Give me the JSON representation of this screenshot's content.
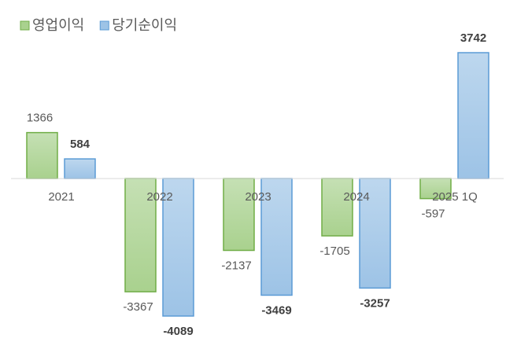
{
  "chart_data": {
    "type": "bar",
    "categories": [
      "2021",
      "2022",
      "2023",
      "2024",
      "2025 1Q"
    ],
    "series": [
      {
        "name": "영업이익",
        "color": "#a9d18e",
        "values": [
          1366,
          -3367,
          -2137,
          -1705,
          -597
        ]
      },
      {
        "name": "당기순이익",
        "color": "#9dc3e6",
        "values": [
          584,
          -4089,
          -3469,
          -3257,
          3742
        ]
      }
    ],
    "legend": "top-left"
  }
}
